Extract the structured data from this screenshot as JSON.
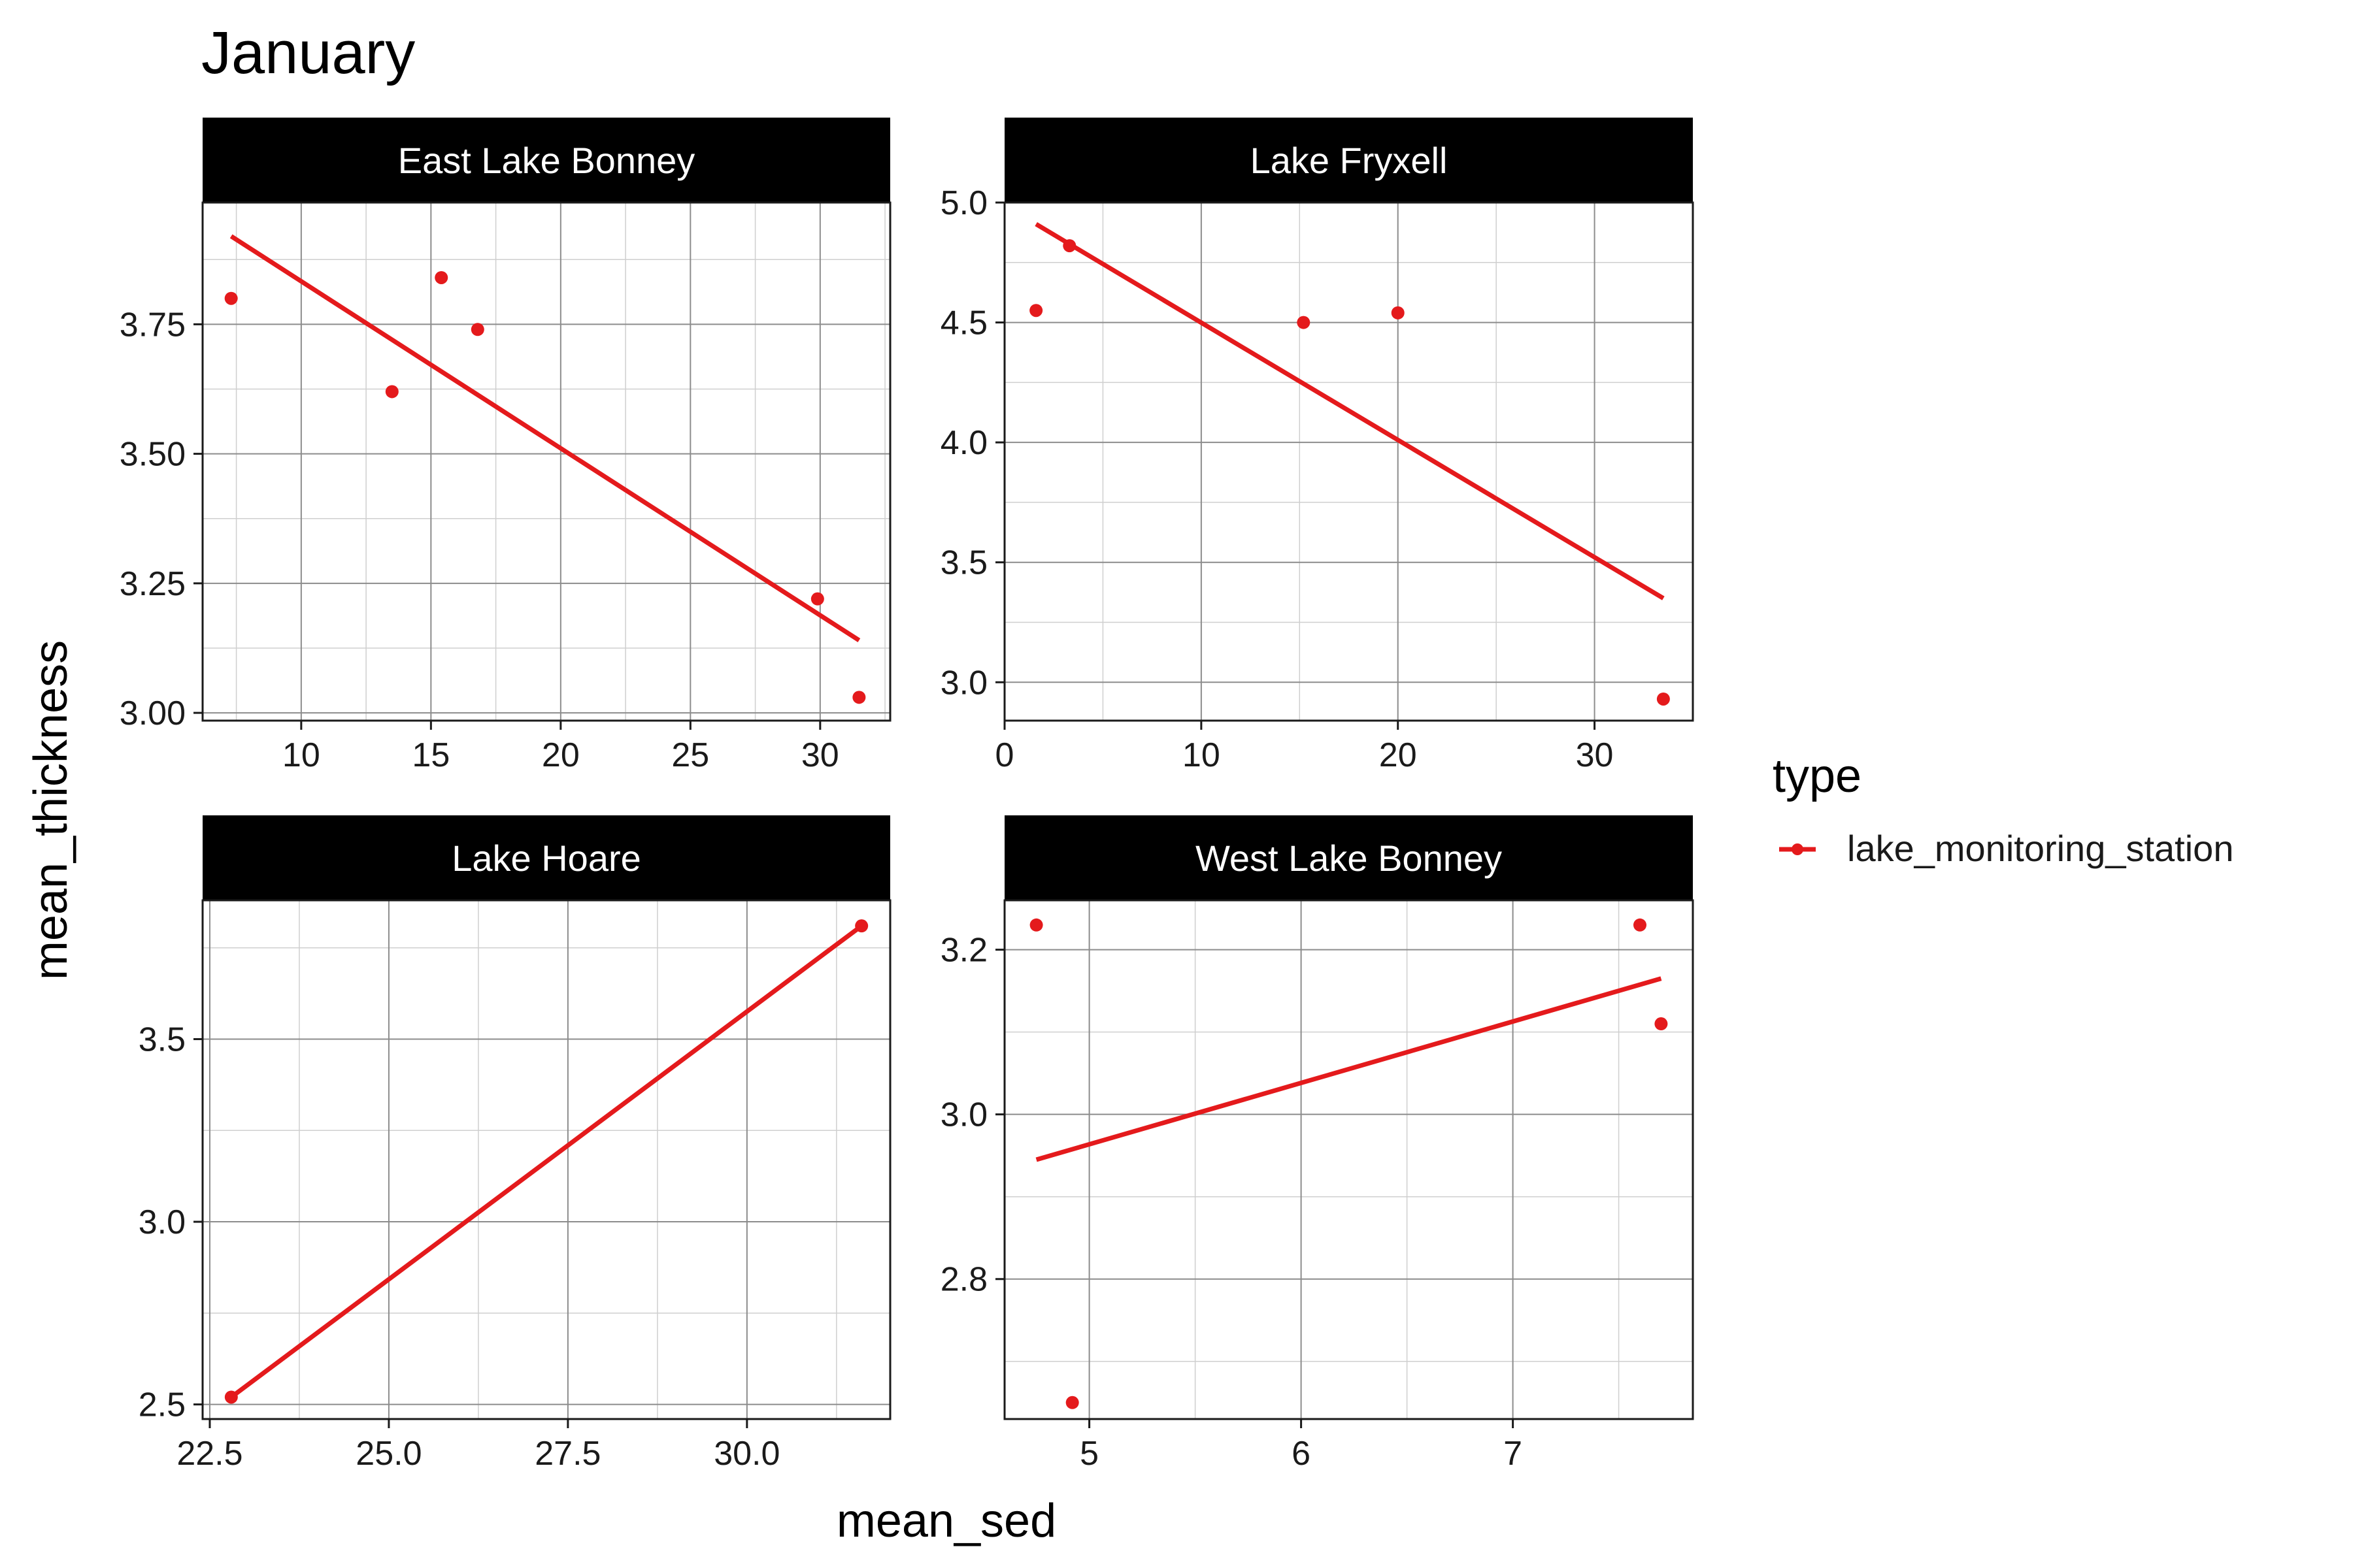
{
  "title": "January",
  "xlabel": "mean_sed",
  "ylabel": "mean_thickness",
  "legend": {
    "title": "type",
    "position": "right",
    "entries": [
      {
        "label": "lake_monitoring_station",
        "color": "#e41a1c"
      }
    ]
  },
  "colors": {
    "series": "#e41a1c",
    "strip_bg": "#000000",
    "strip_text": "#ffffff"
  },
  "chart_data": {
    "type": "scatter",
    "facet_by": "lake",
    "grid": true,
    "smooth": "linear fit",
    "facets": [
      {
        "name": "East Lake Bonney",
        "xlim": [
          6.2,
          32.7
        ],
        "ylim": [
          2.985,
          3.985
        ],
        "xticks": [
          10,
          15,
          20,
          25,
          30
        ],
        "xtick_labels": [
          "10",
          "15",
          "20",
          "25",
          "30"
        ],
        "yticks": [
          3.0,
          3.25,
          3.5,
          3.75
        ],
        "ytick_labels": [
          "3.00",
          "3.25",
          "3.50",
          "3.75"
        ],
        "points": [
          {
            "x": 7.3,
            "y": 3.8
          },
          {
            "x": 13.5,
            "y": 3.62
          },
          {
            "x": 15.4,
            "y": 3.84
          },
          {
            "x": 16.8,
            "y": 3.74
          },
          {
            "x": 29.9,
            "y": 3.22
          },
          {
            "x": 31.5,
            "y": 3.03
          }
        ],
        "fit": {
          "x": [
            7.3,
            31.5
          ],
          "y": [
            3.92,
            3.14
          ]
        }
      },
      {
        "name": "Lake Fryxell",
        "xlim": [
          0.0,
          35.0
        ],
        "ylim": [
          2.84,
          5.0
        ],
        "xticks": [
          0,
          10,
          20,
          30
        ],
        "xtick_labels": [
          "0",
          "10",
          "20",
          "30"
        ],
        "yticks": [
          3.0,
          3.5,
          4.0,
          4.5,
          5.0
        ],
        "ytick_labels": [
          "3.0",
          "3.5",
          "4.0",
          "4.5",
          "5.0"
        ],
        "points": [
          {
            "x": 1.6,
            "y": 4.55
          },
          {
            "x": 3.3,
            "y": 4.82
          },
          {
            "x": 15.2,
            "y": 4.5
          },
          {
            "x": 20.0,
            "y": 4.54
          },
          {
            "x": 33.5,
            "y": 2.93
          }
        ],
        "fit": {
          "x": [
            1.6,
            33.5
          ],
          "y": [
            4.91,
            3.35
          ]
        }
      },
      {
        "name": "Lake Hoare",
        "xlim": [
          22.4,
          32.0
        ],
        "ylim": [
          2.46,
          3.88
        ],
        "xticks": [
          22.5,
          25.0,
          27.5,
          30.0
        ],
        "xtick_labels": [
          "22.5",
          "25.0",
          "27.5",
          "30.0"
        ],
        "yticks": [
          2.5,
          3.0,
          3.5
        ],
        "ytick_labels": [
          "2.5",
          "3.0",
          "3.5"
        ],
        "points": [
          {
            "x": 22.8,
            "y": 2.52
          },
          {
            "x": 31.6,
            "y": 3.81
          }
        ],
        "fit": {
          "x": [
            22.8,
            31.6
          ],
          "y": [
            2.52,
            3.81
          ]
        }
      },
      {
        "name": "West Lake Bonney",
        "xlim": [
          4.6,
          7.85
        ],
        "ylim": [
          2.63,
          3.26
        ],
        "xticks": [
          5,
          6,
          7
        ],
        "xtick_labels": [
          "5",
          "6",
          "7"
        ],
        "yticks": [
          2.8,
          3.0,
          3.2
        ],
        "ytick_labels": [
          "2.8",
          "3.0",
          "3.2"
        ],
        "points": [
          {
            "x": 4.75,
            "y": 3.23
          },
          {
            "x": 4.92,
            "y": 2.65
          },
          {
            "x": 7.6,
            "y": 3.23
          },
          {
            "x": 7.7,
            "y": 3.11
          }
        ],
        "fit": {
          "x": [
            4.75,
            7.7
          ],
          "y": [
            2.945,
            3.165
          ]
        }
      }
    ]
  }
}
